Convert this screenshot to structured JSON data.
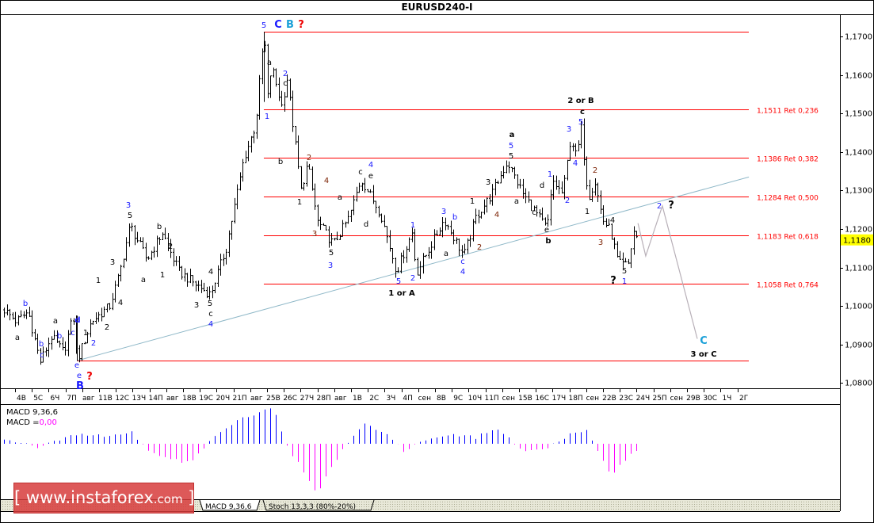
{
  "chart_data": {
    "type": "ohlc",
    "title": "EURUSD240-I",
    "y_ticks": [
      "1,1700",
      "1,1600",
      "1,1500",
      "1,1400",
      "1,1300",
      "1,1200",
      "1,1100",
      "1,1000",
      "1,0900",
      "1,0800"
    ],
    "y_tick_values": [
      1.17,
      1.16,
      1.15,
      1.14,
      1.13,
      1.12,
      1.11,
      1.1,
      1.09,
      1.08
    ],
    "ylim": [
      1.0785,
      1.1795
    ],
    "current_price": {
      "label": "1,1180",
      "value": 1.118,
      "color": "#ffff00"
    },
    "x_ticks": [
      "4В",
      "5С",
      "6Ч",
      "7П",
      "авг",
      "11В",
      "12С",
      "13Ч",
      "14П",
      "авг",
      "18В",
      "19С",
      "20Ч",
      "21П",
      "авг",
      "25В",
      "26С",
      "27Ч",
      "28П",
      "авг",
      "1В",
      "2С",
      "3Ч",
      "4П",
      "сен",
      "8В",
      "9С",
      "10Ч",
      "11П",
      "сен",
      "15В",
      "16С",
      "17Ч",
      "18П",
      "сен",
      "22В",
      "23С",
      "24Ч",
      "25П",
      "сен",
      "29В",
      "30С",
      "1Ч",
      "2Г"
    ],
    "price_pivots": [
      {
        "bar": 0,
        "price": 1.099
      },
      {
        "bar": 4.3,
        "price": 1.096
      },
      {
        "bar": 8.6,
        "price": 1.0985
      },
      {
        "bar": 12.9,
        "price": 1.0855
      },
      {
        "bar": 17,
        "price": 1.092
      },
      {
        "bar": 21.4,
        "price": 1.088
      },
      {
        "bar": 24.9,
        "price": 1.0975
      },
      {
        "bar": 26.3,
        "price": 1.0858
      },
      {
        "bar": 31.4,
        "price": 1.096
      },
      {
        "bar": 38,
        "price": 1.1
      },
      {
        "bar": 41.4,
        "price": 1.108
      },
      {
        "bar": 45.4,
        "price": 1.121
      },
      {
        "bar": 51.4,
        "price": 1.112
      },
      {
        "bar": 57,
        "price": 1.119
      },
      {
        "bar": 62.9,
        "price": 1.109
      },
      {
        "bar": 68.3,
        "price": 1.106
      },
      {
        "bar": 74.3,
        "price": 1.103
      },
      {
        "bar": 80,
        "price": 1.115
      },
      {
        "bar": 86.3,
        "price": 1.138
      },
      {
        "bar": 90.6,
        "price": 1.147
      },
      {
        "bar": 93.7,
        "price": 1.1712
      },
      {
        "bar": 95.1,
        "price": 1.153
      },
      {
        "bar": 96.3,
        "price": 1.1625
      },
      {
        "bar": 100,
        "price": 1.152
      },
      {
        "bar": 102,
        "price": 1.159
      },
      {
        "bar": 107,
        "price": 1.13
      },
      {
        "bar": 109.4,
        "price": 1.137
      },
      {
        "bar": 112.9,
        "price": 1.122
      },
      {
        "bar": 118.6,
        "price": 1.116
      },
      {
        "bar": 124.3,
        "price": 1.123
      },
      {
        "bar": 128.6,
        "price": 1.133
      },
      {
        "bar": 135.7,
        "price": 1.124
      },
      {
        "bar": 141.4,
        "price": 1.109
      },
      {
        "bar": 147,
        "price": 1.119
      },
      {
        "bar": 148.6,
        "price": 1.1085
      },
      {
        "bar": 158.6,
        "price": 1.1225
      },
      {
        "bar": 165.7,
        "price": 1.113
      },
      {
        "bar": 170,
        "price": 1.123
      },
      {
        "bar": 175.7,
        "price": 1.129
      },
      {
        "bar": 181.4,
        "price": 1.1375
      },
      {
        "bar": 187.1,
        "price": 1.129
      },
      {
        "bar": 195.7,
        "price": 1.12
      },
      {
        "bar": 197.7,
        "price": 1.1325
      },
      {
        "bar": 201.4,
        "price": 1.129
      },
      {
        "bar": 204.3,
        "price": 1.144
      },
      {
        "bar": 206.3,
        "price": 1.1385
      },
      {
        "bar": 208,
        "price": 1.146
      },
      {
        "bar": 210.6,
        "price": 1.128
      },
      {
        "bar": 212.9,
        "price": 1.1325
      },
      {
        "bar": 215.7,
        "price": 1.1225
      },
      {
        "bar": 218.6,
        "price": 1.1195
      },
      {
        "bar": 221.4,
        "price": 1.111
      },
      {
        "bar": 224.9,
        "price": 1.1105
      },
      {
        "bar": 227.5,
        "price": 1.1215
      },
      {
        "bar": 228.6,
        "price": 1.118
      }
    ],
    "fib_levels": [
      {
        "price": 1.1712,
        "label": ""
      },
      {
        "price": 1.1511,
        "label": "1,1511 Ret 0,236"
      },
      {
        "price": 1.1386,
        "label": "1,1386 Ret 0,382"
      },
      {
        "price": 1.1284,
        "label": "1,1284 Ret 0,500"
      },
      {
        "price": 1.1183,
        "label": "1,1183 Ret 0,618"
      },
      {
        "price": 1.1058,
        "label": "1,1058 Ret 0,764"
      },
      {
        "price": 1.0858,
        "label": ""
      }
    ],
    "fib_color": "#ff0000",
    "trend_line": {
      "from": {
        "bar": 26.3,
        "price": 1.0858
      },
      "to": {
        "bar": 268.6,
        "price": 1.1335
      },
      "color": "#8fb8c8"
    },
    "projection": {
      "points": [
        {
          "bar": 228.6,
          "price": 1.1215
        },
        {
          "bar": 231.4,
          "price": 1.113
        },
        {
          "bar": 237.4,
          "price": 1.126
        },
        {
          "bar": 250,
          "price": 1.0915
        }
      ],
      "color": "#b8b0b8"
    },
    "wave_labels": [
      {
        "text": "5",
        "color": "#1a1aff"
      },
      {
        "text": "C",
        "color": "#1a1aff",
        "bold": true
      },
      {
        "text": "B",
        "color": "#1aa0d8",
        "bold": true
      },
      {
        "text": "?",
        "color": "#ee0000",
        "bold": true
      },
      {
        "text": "a",
        "color": "#000"
      },
      {
        "text": "2",
        "color": "#1a1aff"
      },
      {
        "text": "c",
        "color": "#000"
      },
      {
        "text": "1",
        "color": "#1a1aff"
      },
      {
        "text": "b",
        "color": "#000"
      },
      {
        "text": "2",
        "color": "#7a1f00"
      },
      {
        "text": "1",
        "color": "#000"
      },
      {
        "text": "3",
        "color": "#7a1f00"
      },
      {
        "text": "4",
        "color": "#7a1f00"
      },
      {
        "text": "a",
        "color": "#000"
      },
      {
        "text": "5",
        "color": "#000"
      },
      {
        "text": "3",
        "color": "#1a1aff"
      },
      {
        "text": "d",
        "color": "#000"
      },
      {
        "text": "c",
        "color": "#000"
      },
      {
        "text": "4",
        "color": "#1a1aff"
      },
      {
        "text": "e",
        "color": "#000"
      },
      {
        "text": "1",
        "color": "#1a1aff"
      },
      {
        "text": "5",
        "color": "#1a1aff"
      },
      {
        "text": "2",
        "color": "#1a1aff"
      },
      {
        "text": "3",
        "color": "#1a1aff"
      },
      {
        "text": "b",
        "color": "#1a1aff"
      },
      {
        "text": "a",
        "color": "#000"
      },
      {
        "text": "c",
        "color": "#1a1aff"
      },
      {
        "text": "4",
        "color": "#1a1aff"
      },
      {
        "text": "2",
        "color": "#7a1f00"
      },
      {
        "text": "1",
        "color": "#000"
      },
      {
        "text": "3",
        "color": "#000"
      },
      {
        "text": "4",
        "color": "#7a1f00"
      },
      {
        "text": "a",
        "color": "#000",
        "bold": true
      },
      {
        "text": "5",
        "color": "#1a1aff"
      },
      {
        "text": "5",
        "color": "#000"
      },
      {
        "text": "a",
        "color": "#000"
      },
      {
        "text": "c",
        "color": "#000"
      },
      {
        "text": "d",
        "color": "#000"
      },
      {
        "text": "1",
        "color": "#1a1aff"
      },
      {
        "text": "e",
        "color": "#000"
      },
      {
        "text": "b",
        "color": "#000",
        "bold": true
      },
      {
        "text": "2",
        "color": "#1a1aff"
      },
      {
        "text": "3",
        "color": "#1a1aff"
      },
      {
        "text": "4",
        "color": "#1a1aff"
      },
      {
        "text": "5",
        "color": "#1a1aff"
      },
      {
        "text": "c",
        "color": "#000",
        "bold": true
      },
      {
        "text": "2 or B",
        "color": "#000",
        "bold": true
      },
      {
        "text": "2",
        "color": "#7a1f00"
      },
      {
        "text": "1",
        "color": "#000"
      },
      {
        "text": "4",
        "color": "#000"
      },
      {
        "text": "3",
        "color": "#7a1f00"
      },
      {
        "text": "5",
        "color": "#000"
      },
      {
        "text": "1",
        "color": "#1a1aff"
      },
      {
        "text": "?",
        "color": "#000",
        "bold": true
      },
      {
        "text": "2",
        "color": "#1a1aff"
      },
      {
        "text": "?",
        "color": "#000",
        "bold": true
      },
      {
        "text": "C",
        "color": "#1aa0d8",
        "bold": true
      },
      {
        "text": "3 or C",
        "color": "#000",
        "bold": true
      },
      {
        "text": "1 or A",
        "color": "#000",
        "bold": true
      },
      {
        "text": "b",
        "color": "#1a1aff"
      },
      {
        "text": "a",
        "color": "#000"
      },
      {
        "text": "b",
        "color": "#1a1aff"
      },
      {
        "text": "c",
        "color": "#1a1aff"
      },
      {
        "text": "a",
        "color": "#000"
      },
      {
        "text": "b",
        "color": "#1a1aff"
      },
      {
        "text": "d",
        "color": "#1a1aff",
        "bold": true
      },
      {
        "text": "c",
        "color": "#1a1aff"
      },
      {
        "text": "1",
        "color": "#000"
      },
      {
        "text": "2",
        "color": "#1a1aff"
      },
      {
        "text": "e",
        "color": "#1a1aff"
      },
      {
        "text": "e",
        "color": "#1a1aff"
      },
      {
        "text": "B",
        "color": "#1a1aff",
        "bold": true
      },
      {
        "text": "?",
        "color": "#ee0000",
        "bold": true
      },
      {
        "text": "2",
        "color": "#000"
      },
      {
        "text": "1",
        "color": "#000"
      },
      {
        "text": "3",
        "color": "#000"
      },
      {
        "text": "4",
        "color": "#000"
      },
      {
        "text": "3",
        "color": "#1a1aff"
      },
      {
        "text": "5",
        "color": "#000"
      },
      {
        "text": "a",
        "color": "#000"
      },
      {
        "text": "b",
        "color": "#000"
      },
      {
        "text": "1",
        "color": "#000"
      },
      {
        "text": "2",
        "color": "#000"
      },
      {
        "text": "3",
        "color": "#000"
      },
      {
        "text": "4",
        "color": "#000"
      },
      {
        "text": "5",
        "color": "#000"
      },
      {
        "text": "c",
        "color": "#000"
      },
      {
        "text": "4",
        "color": "#1a1aff"
      }
    ],
    "macd": {
      "name": "MACD 9,36,6",
      "value_label": "MACD =",
      "value": "0,00",
      "positive_color": "#0000ff",
      "negative_color": "#ff00ff",
      "pivots": [
        {
          "bar": 0,
          "value": 0.0005
        },
        {
          "bar": 12.9,
          "value": -0.0005
        },
        {
          "bar": 24.3,
          "value": 0.0012
        },
        {
          "bar": 38.6,
          "value": 0.001
        },
        {
          "bar": 45.7,
          "value": 0.0015
        },
        {
          "bar": 52.9,
          "value": -0.0012
        },
        {
          "bar": 67.1,
          "value": -0.0025
        },
        {
          "bar": 75.7,
          "value": 0.0008
        },
        {
          "bar": 84.3,
          "value": 0.003
        },
        {
          "bar": 97.1,
          "value": 0.0045
        },
        {
          "bar": 101.4,
          "value": 0
        },
        {
          "bar": 112.9,
          "value": -0.0062
        },
        {
          "bar": 121.4,
          "value": -0.001
        },
        {
          "bar": 130,
          "value": 0.0025
        },
        {
          "bar": 138.6,
          "value": 0.001
        },
        {
          "bar": 144.3,
          "value": -0.001
        },
        {
          "bar": 151.4,
          "value": 0.0005
        },
        {
          "bar": 161.4,
          "value": 0.0012
        },
        {
          "bar": 170,
          "value": 0.0008
        },
        {
          "bar": 177.1,
          "value": 0.002
        },
        {
          "bar": 187.1,
          "value": -0.0008
        },
        {
          "bar": 195.7,
          "value": -0.0005
        },
        {
          "bar": 204.3,
          "value": 0.0012
        },
        {
          "bar": 210,
          "value": 0.0016
        },
        {
          "bar": 218.6,
          "value": -0.004
        },
        {
          "bar": 224.3,
          "value": -0.002
        },
        {
          "bar": 228.6,
          "value": -0.0005
        }
      ]
    }
  },
  "tabs": [
    "MACD 9,36,6",
    "Stoch 13,3,3 (80%-20%)"
  ],
  "watermark": {
    "open": "[",
    "site": "www.instaforex",
    "domain": ".com",
    "close": "]"
  }
}
